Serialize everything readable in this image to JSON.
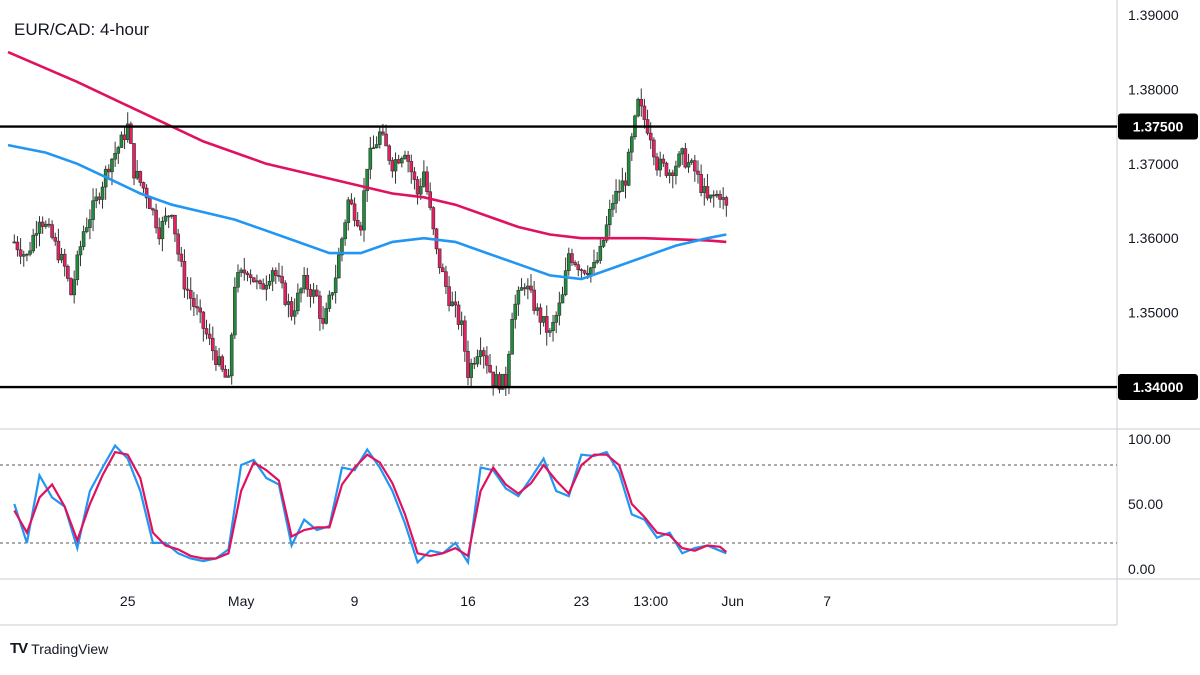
{
  "title": "EUR/CAD: 4-hour",
  "brand": "TradingView",
  "brand_logo": "TV",
  "colors": {
    "up": "#26a69a",
    "up_fill": "#1e8c3a",
    "down": "#e91e63",
    "sma_fast": "#2196f3",
    "sma_slow": "#e0115f",
    "stoch_k": "#2196f3",
    "stoch_d": "#e0115f",
    "level": "#000000"
  },
  "x_ticks": [
    "25",
    "May",
    "9",
    "16",
    "23",
    "13:00",
    "Jun",
    "7"
  ],
  "price_ticks": [
    "1.39000",
    "1.38000",
    "1.37000",
    "1.36000",
    "1.35000"
  ],
  "level_labels": [
    "1.37500",
    "1.34000"
  ],
  "osc_ticks": [
    "100.00",
    "50.00",
    "0.00"
  ],
  "chart_data": [
    {
      "type": "candlestick",
      "title": "EUR/CAD: 4-hour",
      "ylim": [
        1.3345,
        1.392
      ],
      "y_ticks": [
        1.39,
        1.38,
        1.37,
        1.36,
        1.35
      ],
      "x_range": [
        -1,
        175
      ],
      "x_ticks": [
        {
          "label": "25",
          "x": 18
        },
        {
          "label": "May",
          "x": 36
        },
        {
          "label": "9",
          "x": 54
        },
        {
          "label": "16",
          "x": 72
        },
        {
          "label": "23",
          "x": 90
        },
        {
          "label": "13:00",
          "x": 101
        },
        {
          "label": "Jun",
          "x": 114
        },
        {
          "label": "7",
          "x": 129
        }
      ],
      "horizontal_levels": [
        1.375,
        1.34
      ],
      "price_path": [
        [
          0,
          1.3595
        ],
        [
          2,
          1.3575
        ],
        [
          4,
          1.363
        ],
        [
          6,
          1.36
        ],
        [
          8,
          1.356
        ],
        [
          9,
          1.3525
        ],
        [
          11,
          1.361
        ],
        [
          13,
          1.365
        ],
        [
          15,
          1.37
        ],
        [
          17,
          1.373
        ],
        [
          18,
          1.375
        ],
        [
          19,
          1.369
        ],
        [
          21,
          1.366
        ],
        [
          23,
          1.361
        ],
        [
          25,
          1.364
        ],
        [
          26,
          1.358
        ],
        [
          27,
          1.354
        ],
        [
          29,
          1.35
        ],
        [
          31,
          1.346
        ],
        [
          33,
          1.342
        ],
        [
          34,
          1.3405
        ],
        [
          35,
          1.354
        ],
        [
          37,
          1.356
        ],
        [
          39,
          1.353
        ],
        [
          41,
          1.356
        ],
        [
          43,
          1.352
        ],
        [
          44,
          1.35
        ],
        [
          46,
          1.354
        ],
        [
          48,
          1.352
        ],
        [
          49,
          1.348
        ],
        [
          51,
          1.355
        ],
        [
          53,
          1.365
        ],
        [
          55,
          1.362
        ],
        [
          56,
          1.37
        ],
        [
          58,
          1.374
        ],
        [
          60,
          1.37
        ],
        [
          62,
          1.372
        ],
        [
          64,
          1.366
        ],
        [
          65,
          1.369
        ],
        [
          67,
          1.358
        ],
        [
          69,
          1.352
        ],
        [
          71,
          1.348
        ],
        [
          72,
          1.342
        ],
        [
          74,
          1.346
        ],
        [
          76,
          1.341
        ],
        [
          78,
          1.3405
        ],
        [
          79,
          1.35
        ],
        [
          81,
          1.354
        ],
        [
          83,
          1.35
        ],
        [
          85,
          1.347
        ],
        [
          87,
          1.352
        ],
        [
          88,
          1.358
        ],
        [
          90,
          1.356
        ],
        [
          92,
          1.356
        ],
        [
          93,
          1.358
        ],
        [
          95,
          1.365
        ],
        [
          97,
          1.368
        ],
        [
          99,
          1.378
        ],
        [
          101,
          1.374
        ],
        [
          102,
          1.37
        ],
        [
          104,
          1.369
        ],
        [
          106,
          1.371
        ],
        [
          108,
          1.369
        ],
        [
          110,
          1.365
        ],
        [
          112,
          1.366
        ],
        [
          113,
          1.364
        ]
      ],
      "series": [
        {
          "name": "",
          "style": "line",
          "points": [
            [
              -1,
              1.385
            ],
            [
              10,
              1.381
            ],
            [
              20,
              1.377
            ],
            [
              30,
              1.373
            ],
            [
              40,
              1.37
            ],
            [
              50,
              1.368
            ],
            [
              60,
              1.366
            ],
            [
              65,
              1.3655
            ],
            [
              70,
              1.3645
            ],
            [
              75,
              1.363
            ],
            [
              80,
              1.3615
            ],
            [
              85,
              1.3605
            ],
            [
              90,
              1.36
            ],
            [
              100,
              1.36
            ],
            [
              110,
              1.3597
            ],
            [
              113,
              1.3595
            ]
          ]
        },
        {
          "name": "",
          "style": "line",
          "points": [
            [
              -1,
              1.3725
            ],
            [
              5,
              1.3715
            ],
            [
              10,
              1.37
            ],
            [
              15,
              1.368
            ],
            [
              20,
              1.366
            ],
            [
              25,
              1.3645
            ],
            [
              30,
              1.3635
            ],
            [
              35,
              1.3625
            ],
            [
              40,
              1.361
            ],
            [
              45,
              1.3595
            ],
            [
              50,
              1.358
            ],
            [
              55,
              1.358
            ],
            [
              60,
              1.3595
            ],
            [
              65,
              1.36
            ],
            [
              70,
              1.3595
            ],
            [
              75,
              1.358
            ],
            [
              80,
              1.3565
            ],
            [
              85,
              1.355
            ],
            [
              90,
              1.3545
            ],
            [
              95,
              1.356
            ],
            [
              100,
              1.3575
            ],
            [
              105,
              1.359
            ],
            [
              110,
              1.36
            ],
            [
              113,
              1.3605
            ]
          ]
        }
      ]
    },
    {
      "type": "line",
      "ylim": [
        -7,
        107
      ],
      "y_ticks": [
        100,
        50,
        0
      ],
      "x_range": [
        -1,
        175
      ],
      "reference_levels": [
        80,
        20
      ],
      "series": [
        {
          "name": "",
          "x": [
            0,
            2,
            4,
            6,
            8,
            10,
            12,
            14,
            16,
            18,
            20,
            22,
            24,
            26,
            28,
            30,
            32,
            34,
            36,
            38,
            40,
            42,
            44,
            46,
            48,
            50,
            52,
            54,
            56,
            58,
            60,
            62,
            64,
            66,
            68,
            70,
            72,
            74,
            76,
            78,
            80,
            82,
            84,
            86,
            88,
            90,
            92,
            94,
            96,
            98,
            100,
            102,
            104,
            106,
            108,
            110,
            112,
            113
          ],
          "values": [
            50,
            20,
            72,
            55,
            48,
            16,
            60,
            78,
            95,
            85,
            60,
            20,
            20,
            12,
            8,
            6,
            8,
            15,
            80,
            84,
            70,
            65,
            18,
            38,
            30,
            33,
            78,
            76,
            92,
            78,
            60,
            35,
            5,
            14,
            12,
            20,
            5,
            78,
            76,
            62,
            56,
            70,
            85,
            60,
            56,
            88,
            87,
            90,
            74,
            42,
            38,
            24,
            28,
            12,
            16,
            18,
            14,
            12
          ]
        },
        {
          "name": "",
          "x": [
            0,
            2,
            4,
            6,
            8,
            10,
            12,
            14,
            16,
            18,
            20,
            22,
            24,
            26,
            28,
            30,
            32,
            34,
            36,
            38,
            40,
            42,
            44,
            46,
            48,
            50,
            52,
            54,
            56,
            58,
            60,
            62,
            64,
            66,
            68,
            70,
            72,
            74,
            76,
            78,
            80,
            82,
            84,
            86,
            88,
            90,
            92,
            94,
            96,
            98,
            100,
            102,
            104,
            106,
            108,
            110,
            112,
            113
          ],
          "values": [
            45,
            28,
            55,
            65,
            48,
            22,
            50,
            72,
            90,
            88,
            70,
            28,
            18,
            15,
            10,
            8,
            8,
            12,
            60,
            82,
            76,
            68,
            25,
            30,
            32,
            32,
            65,
            78,
            88,
            82,
            66,
            42,
            12,
            10,
            12,
            16,
            10,
            60,
            78,
            65,
            58,
            66,
            80,
            68,
            58,
            80,
            88,
            88,
            80,
            50,
            40,
            28,
            26,
            16,
            14,
            18,
            17,
            13
          ]
        }
      ]
    }
  ]
}
